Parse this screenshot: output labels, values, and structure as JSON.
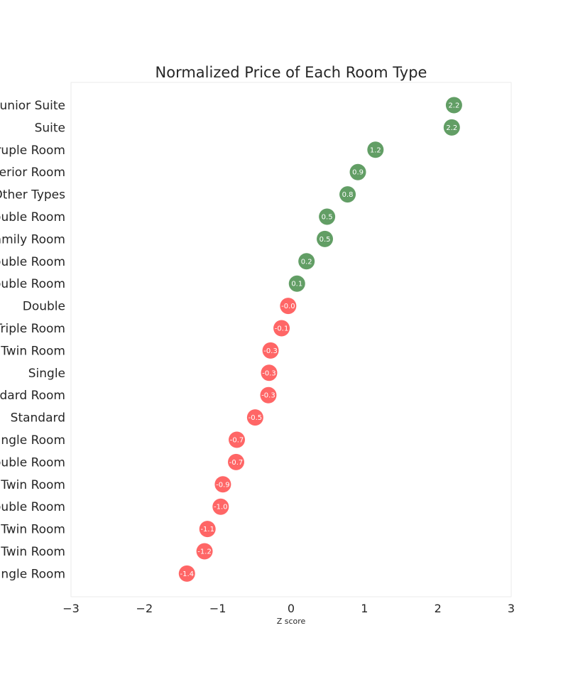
{
  "chart_data": {
    "type": "scatter",
    "title": "Normalized Price of Each Room Type",
    "xlabel": "Z score",
    "ylabel": "",
    "xlim": [
      -3,
      3
    ],
    "xticks": [
      "−3",
      "−2",
      "−1",
      "0",
      "1",
      "2",
      "3"
    ],
    "grid": false,
    "colors": {
      "positive": "#2e7d32",
      "negative": "#ff3333"
    },
    "categories": [
      "Junior Suite",
      "Suite",
      "Quadruple Room",
      "Superior Room",
      "Other Types",
      "Deluxe Double Room",
      "Family Room",
      "Superior Double Room",
      "Standard Double Room",
      "Double",
      "Triple Room",
      "Twin Room",
      "Single",
      "Standard Room",
      "Standard",
      "Single Room",
      "Double Room",
      "Standard Twin Room",
      "Economy Double Room",
      "Economy Twin Room",
      "Basic Twin Room",
      "Economy Single Room"
    ],
    "values": [
      2.22,
      2.19,
      1.15,
      0.91,
      0.77,
      0.49,
      0.46,
      0.21,
      0.08,
      -0.04,
      -0.13,
      -0.28,
      -0.3,
      -0.31,
      -0.49,
      -0.74,
      -0.75,
      -0.93,
      -0.96,
      -1.14,
      -1.18,
      -1.42
    ],
    "labels": [
      "2.2",
      "2.2",
      "1.2",
      "0.9",
      "0.8",
      "0.5",
      "0.5",
      "0.2",
      "0.1",
      "-0.0",
      "-0.1",
      "-0.3",
      "-0.3",
      "-0.3",
      "-0.5",
      "-0.7",
      "-0.7",
      "-0.9",
      "-1.0",
      "-1.1",
      "-1.2",
      "-1.4"
    ]
  }
}
